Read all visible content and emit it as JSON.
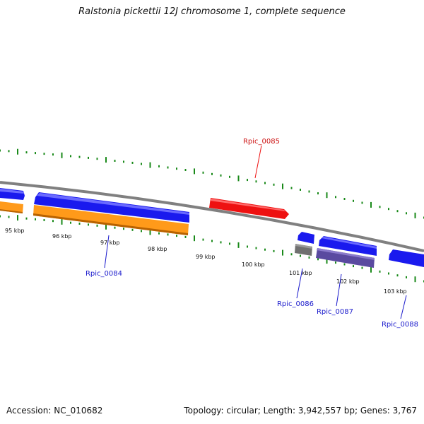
{
  "title": "Ralstonia pickettii 12J chromosome 1, complete sequence",
  "footer": {
    "accession_label": "Accession:",
    "accession": "NC_010682",
    "topology_text": "Topology: circular; Length: 3,942,557 bp; Genes: 3,767"
  },
  "colors": {
    "backbone": "#808080",
    "ticks": "#1a8a1a",
    "gene_blue": "#1a1aee",
    "gene_orange": "#ff9a1a",
    "gene_red": "#ee1111",
    "gene_gray": "#707070",
    "gene_purple": "#5a4aa0",
    "label_blue": "#1a1acc",
    "label_red": "#cc1111"
  },
  "scale": {
    "unit": "kbp",
    "tick_labels": [
      "95 kbp",
      "96 kbp",
      "97 kbp",
      "98 kbp",
      "99 kbp",
      "100 kbp",
      "101 kbp",
      "102 kbp",
      "103 kbp"
    ]
  },
  "gene_labels": [
    {
      "text": "Rpic_0084",
      "color": "label_blue"
    },
    {
      "text": "Rpic_0085",
      "color": "label_red"
    },
    {
      "text": "Rpic_0086",
      "color": "label_blue"
    },
    {
      "text": "Rpic_0087",
      "color": "label_blue"
    },
    {
      "text": "Rpic_0088",
      "color": "label_blue"
    }
  ]
}
